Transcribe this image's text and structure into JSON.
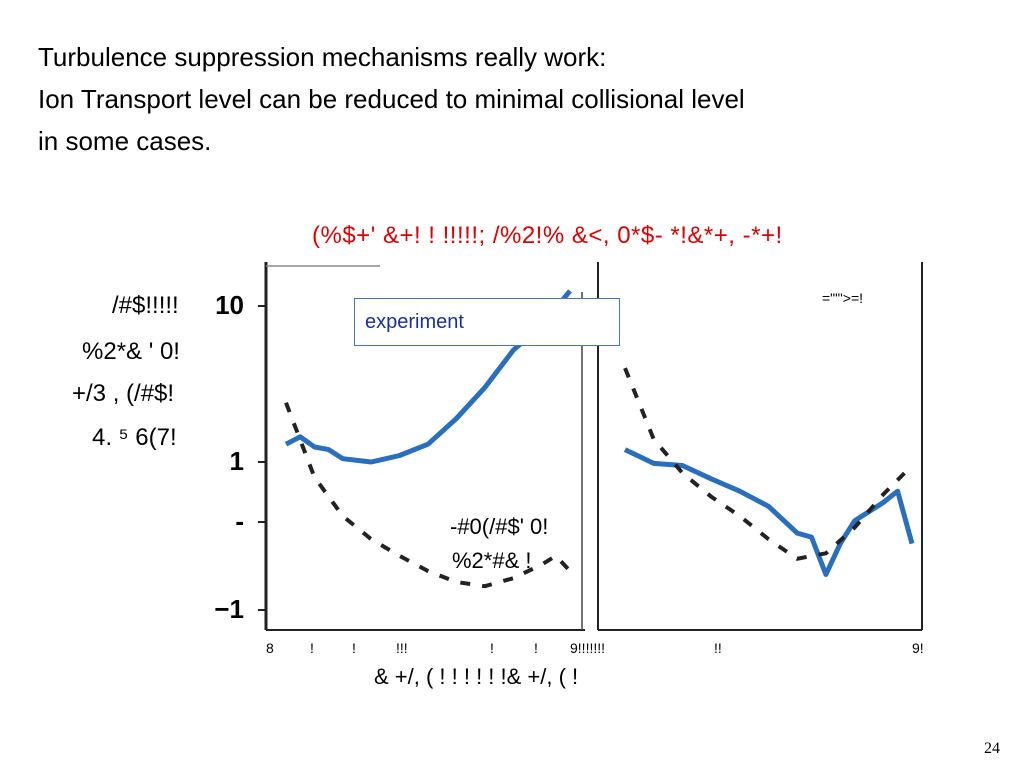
{
  "slide": {
    "title_lines": [
      "Turbulence suppression mechanisms really work:",
      "Ion Transport level can be reduced to minimal collisional level",
      "in some cases."
    ],
    "page_number": "24"
  },
  "red_heading": "(%$+' &+!    !    !!!!!;  /%2!% &<, 0*$- *!&*+, -*+!",
  "ylabel_lines": [
    "/#$!!!!!",
    "%2*&  ' 0!",
    "+/3 , (/#$!",
    "4.  ⁵ 6(7!"
  ],
  "annotation_lines": [
    "-#0(/#$' 0!",
    "%2*#& !"
  ],
  "top_right_note": "=\"\"'>=!",
  "legend_label": "experiment",
  "x_ticks": [
    "8",
    "!",
    "!",
    "!!!",
    "!",
    "!",
    "9!!!!!!!",
    "!!",
    "9!"
  ],
  "x_label": "& +/, (  !     !     !     !     !     !& +/, ( !",
  "colors": {
    "experiment": "#2a6fbf",
    "model": "#222222",
    "heading": "#e00000"
  },
  "chart_data": {
    "type": "line",
    "y_scale": "log",
    "y_ticks": [
      "10",
      "1",
      "-",
      "−1"
    ],
    "panels": [
      {
        "series": [
          {
            "name": "experiment",
            "style": "solid",
            "x": [
              0,
              0.05,
              0.1,
              0.15,
              0.2,
              0.3,
              0.4,
              0.5,
              0.6,
              0.7,
              0.8,
              0.9,
              1.0
            ],
            "y": [
              1.3,
              1.45,
              1.25,
              1.2,
              1.05,
              1.0,
              1.1,
              1.3,
              1.9,
              3.0,
              5.2,
              7.5,
              12.5
            ]
          },
          {
            "name": "",
            "style": "dashed",
            "x": [
              0,
              0.1,
              0.2,
              0.3,
              0.4,
              0.5,
              0.6,
              0.7,
              0.8,
              0.9,
              0.95,
              1.0
            ],
            "y": [
              2.4,
              0.8,
              0.45,
              0.32,
              0.25,
              0.2,
              0.17,
              0.16,
              0.18,
              0.22,
              0.25,
              0.2
            ]
          }
        ]
      },
      {
        "series": [
          {
            "name": "experiment",
            "style": "solid",
            "x": [
              0,
              0.1,
              0.2,
              0.3,
              0.4,
              0.5,
              0.6,
              0.65,
              0.7,
              0.75,
              0.8,
              0.9,
              0.95,
              1.0
            ],
            "y": [
              1.2,
              0.98,
              0.95,
              0.78,
              0.65,
              0.52,
              0.35,
              0.33,
              0.19,
              0.3,
              0.42,
              0.55,
              0.65,
              0.3
            ]
          },
          {
            "name": "",
            "style": "dashed",
            "x": [
              0,
              0.1,
              0.2,
              0.3,
              0.4,
              0.5,
              0.6,
              0.7,
              0.8,
              0.9,
              1.0
            ],
            "y": [
              4.0,
              1.4,
              0.85,
              0.6,
              0.45,
              0.32,
              0.24,
              0.26,
              0.38,
              0.62,
              0.95
            ]
          }
        ]
      }
    ]
  }
}
